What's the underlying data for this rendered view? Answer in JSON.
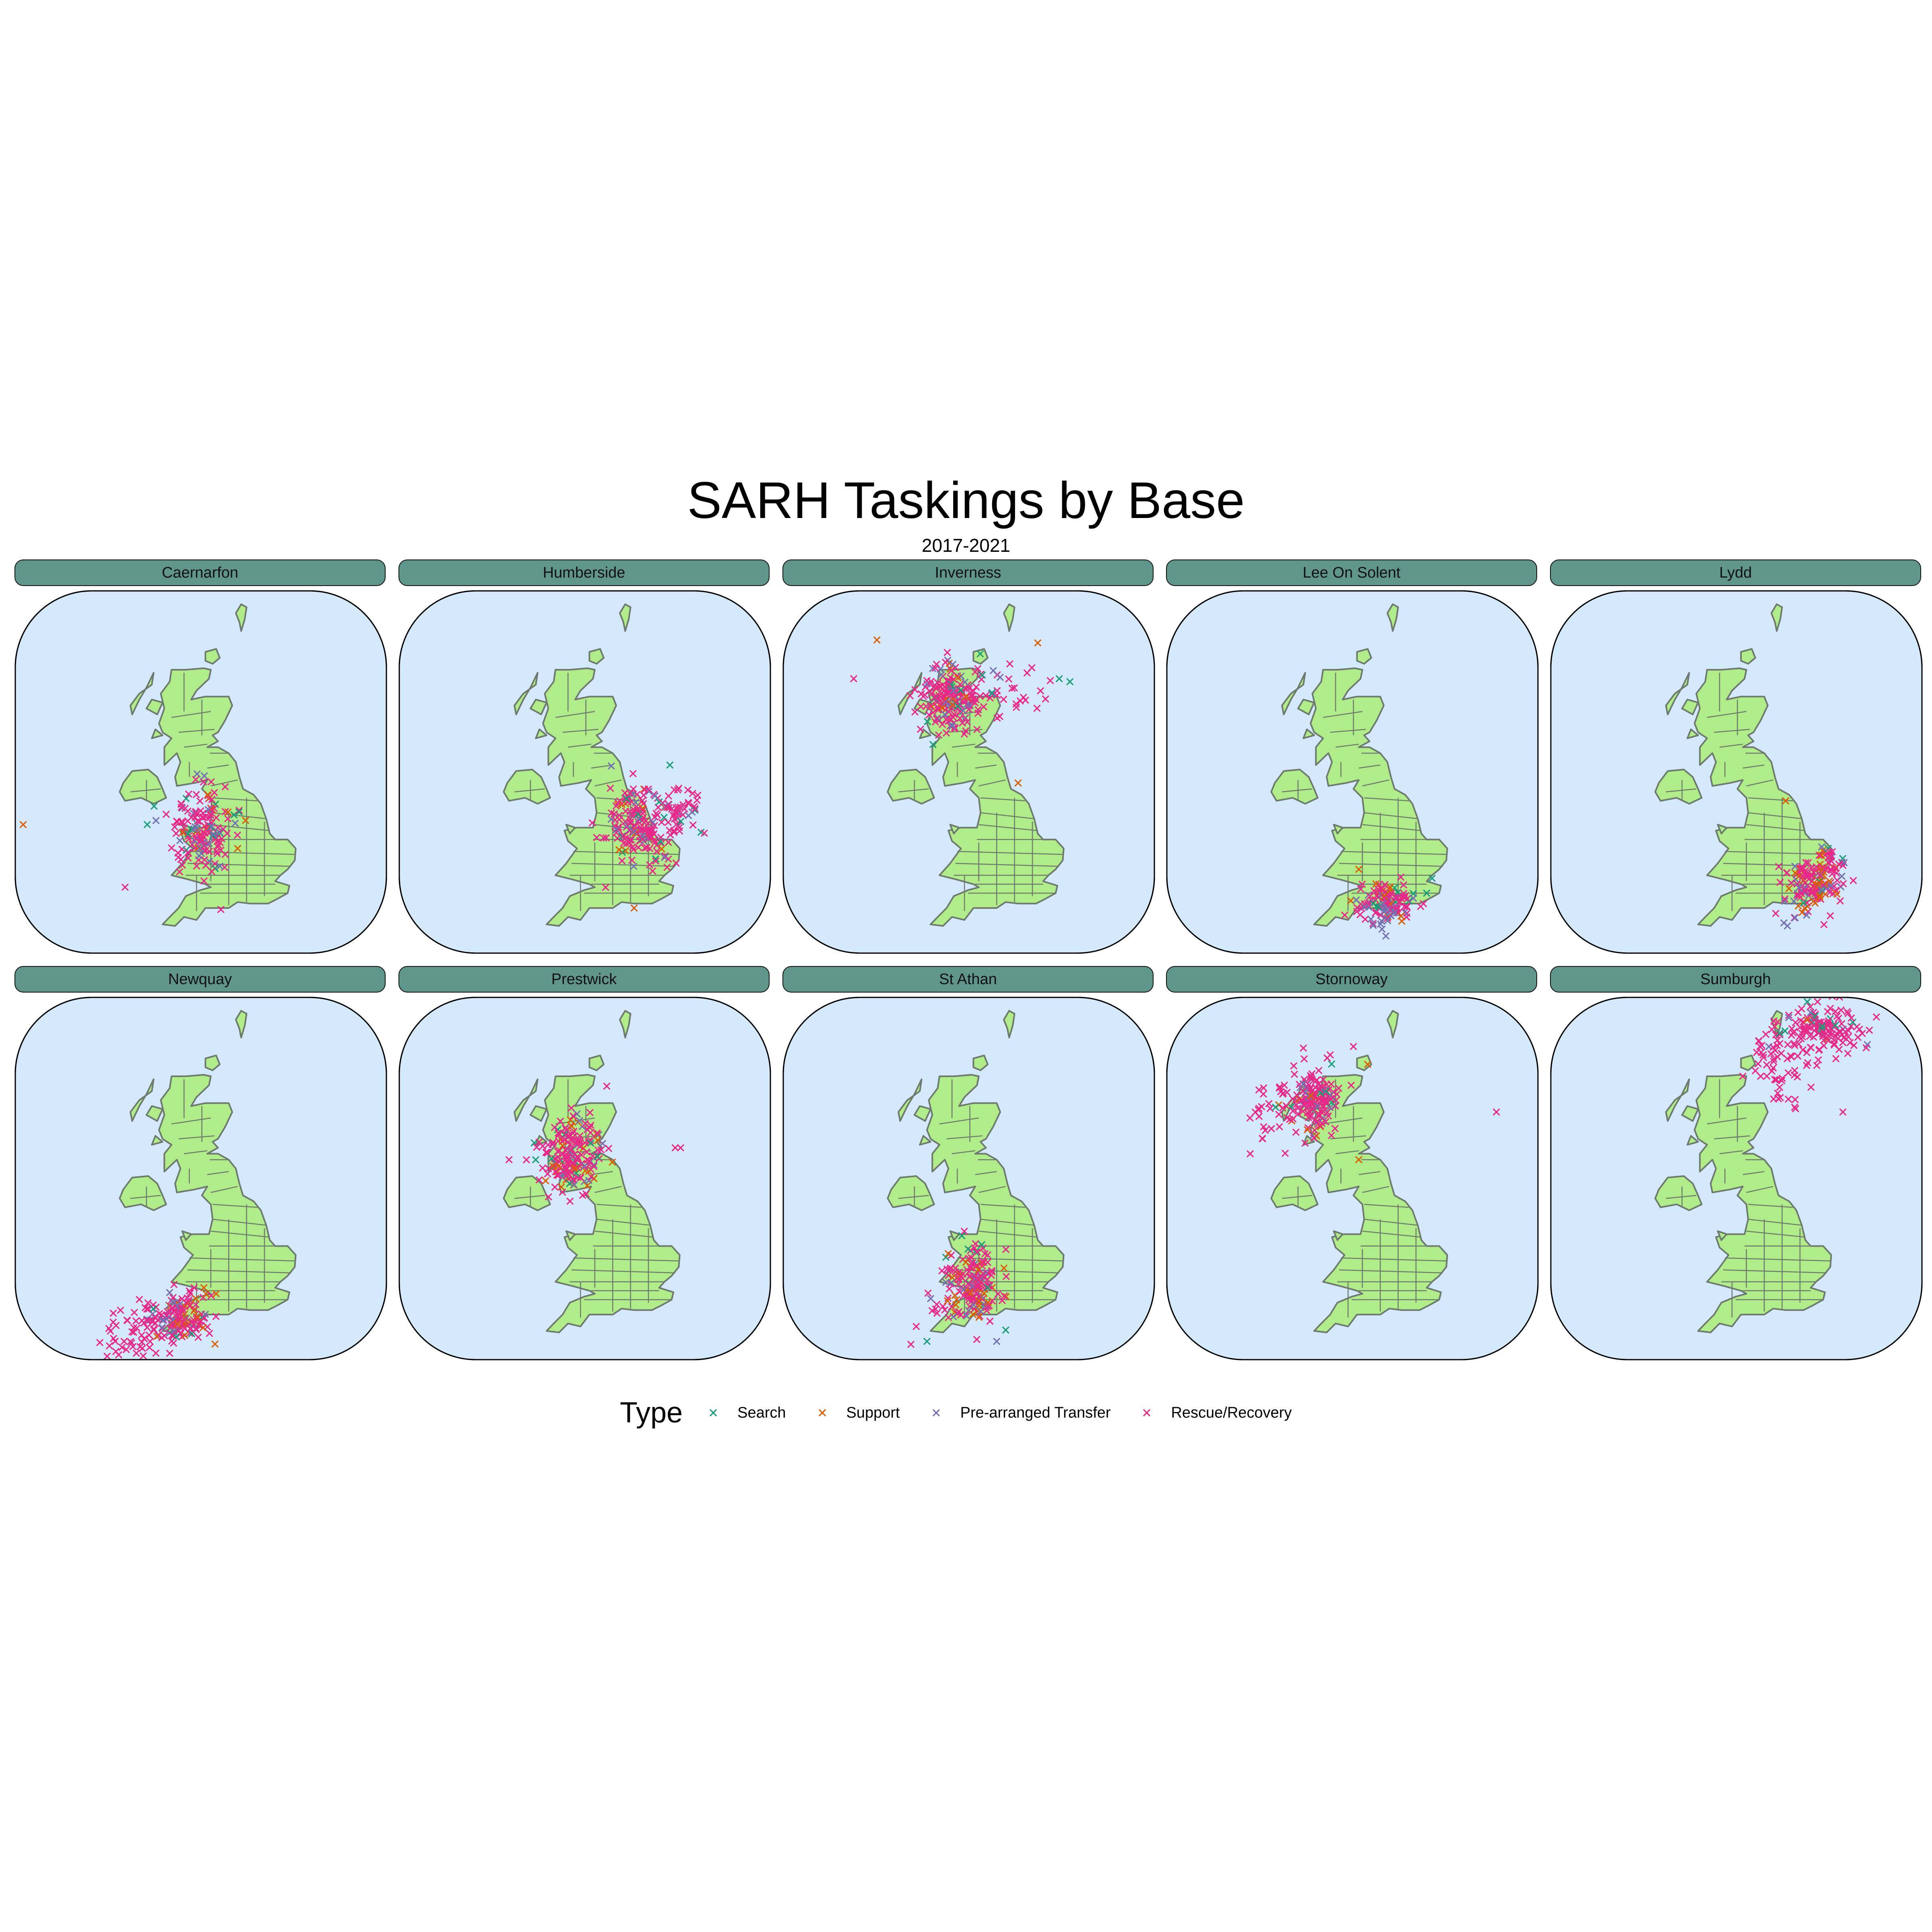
{
  "title": "SARH Taskings by Base",
  "subtitle": "2017-2021",
  "colors": {
    "sea": "#d4e9fc",
    "land": "#b0ec8a",
    "border": "#6d7a6d",
    "strip": "#5f958a"
  },
  "types": [
    {
      "key": "search",
      "label": "Search",
      "color": "#1b9e77"
    },
    {
      "key": "support",
      "label": "Support",
      "color": "#d95f02"
    },
    {
      "key": "transfer",
      "label": "Pre-arranged Transfer",
      "color": "#7570b3"
    },
    {
      "key": "rescue",
      "label": "Rescue/Recovery",
      "color": "#e7298a"
    }
  ],
  "legend": {
    "title": "Type"
  },
  "facets": [
    {
      "name": "Caernarfon",
      "clusters": [
        {
          "lon": -3.6,
          "lat": 53.0,
          "slon": 0.9,
          "slat": 0.7,
          "n": 140,
          "mix": [
            0.06,
            0.07,
            0.12,
            0.75
          ]
        },
        {
          "lon": -3.2,
          "lat": 54.2,
          "slon": 0.5,
          "slat": 0.5,
          "n": 20,
          "mix": [
            0.1,
            0.1,
            0.2,
            0.6
          ]
        }
      ],
      "outliers": [
        {
          "lon": -13.5,
          "lat": 53.4,
          "type": 1
        },
        {
          "lon": -7.8,
          "lat": 51.3,
          "type": 3
        },
        {
          "lon": -1.5,
          "lat": 52.6,
          "type": 1
        }
      ]
    },
    {
      "name": "Humberside",
      "clusters": [
        {
          "lon": -0.6,
          "lat": 53.4,
          "slon": 1.0,
          "slat": 0.7,
          "n": 170,
          "mix": [
            0.06,
            0.1,
            0.1,
            0.74
          ]
        },
        {
          "lon": 1.8,
          "lat": 53.8,
          "slon": 0.6,
          "slat": 0.5,
          "n": 40,
          "mix": [
            0.1,
            0.05,
            0.05,
            0.8
          ]
        }
      ],
      "outliers": [
        {
          "lon": -0.8,
          "lat": 50.6,
          "type": 1
        },
        {
          "lon": 1.2,
          "lat": 55.4,
          "type": 0
        }
      ]
    },
    {
      "name": "Inverness",
      "clusters": [
        {
          "lon": -4.6,
          "lat": 57.6,
          "slon": 0.9,
          "slat": 0.6,
          "n": 180,
          "mix": [
            0.05,
            0.08,
            0.12,
            0.75
          ]
        },
        {
          "lon": -1.4,
          "lat": 58.0,
          "slon": 1.2,
          "slat": 0.4,
          "n": 30,
          "mix": [
            0.05,
            0.05,
            0.05,
            0.85
          ]
        }
      ],
      "outliers": [
        {
          "lon": -8.7,
          "lat": 59.6,
          "type": 1
        },
        {
          "lon": -10.0,
          "lat": 58.3,
          "type": 3
        },
        {
          "lon": 0.3,
          "lat": 59.5,
          "type": 1
        },
        {
          "lon": 1.5,
          "lat": 58.3,
          "type": 0
        },
        {
          "lon": 2.1,
          "lat": 58.2,
          "type": 0
        },
        {
          "lon": -0.8,
          "lat": 54.8,
          "type": 1
        }
      ]
    },
    {
      "name": "Lee On Solent",
      "clusters": [
        {
          "lon": -1.6,
          "lat": 50.8,
          "slon": 0.9,
          "slat": 0.3,
          "n": 120,
          "mix": [
            0.08,
            0.08,
            0.2,
            0.64
          ]
        },
        {
          "lon": -1.9,
          "lat": 50.1,
          "slon": 0.3,
          "slat": 0.2,
          "n": 10,
          "mix": [
            0.0,
            0.0,
            1.0,
            0.0
          ]
        }
      ],
      "outliers": [
        {
          "lon": -3.2,
          "lat": 51.9,
          "type": 1
        },
        {
          "lon": 0.9,
          "lat": 51.6,
          "type": 0
        },
        {
          "lon": 0.6,
          "lat": 51.1,
          "type": 0
        }
      ]
    },
    {
      "name": "Lydd",
      "clusters": [
        {
          "lon": 0.8,
          "lat": 51.4,
          "slon": 0.9,
          "slat": 0.5,
          "n": 140,
          "mix": [
            0.06,
            0.2,
            0.12,
            0.62
          ]
        },
        {
          "lon": 1.6,
          "lat": 52.2,
          "slon": 0.5,
          "slat": 0.3,
          "n": 25,
          "mix": [
            0.05,
            0.05,
            0.1,
            0.8
          ]
        }
      ],
      "outliers": [
        {
          "lon": -0.9,
          "lat": 50.1,
          "type": 2
        },
        {
          "lon": -0.7,
          "lat": 50.0,
          "type": 2
        },
        {
          "lon": -0.8,
          "lat": 54.2,
          "type": 1
        }
      ]
    },
    {
      "name": "Newquay",
      "clusters": [
        {
          "lon": -4.8,
          "lat": 50.5,
          "slon": 0.9,
          "slat": 0.4,
          "n": 150,
          "mix": [
            0.06,
            0.12,
            0.12,
            0.7
          ]
        },
        {
          "lon": -7.0,
          "lat": 50.0,
          "slon": 1.2,
          "slat": 0.4,
          "n": 45,
          "mix": [
            0.05,
            0.0,
            0.05,
            0.9
          ]
        }
      ],
      "outliers": [
        {
          "lon": -8.8,
          "lat": 49.2,
          "type": 3
        },
        {
          "lon": -5.3,
          "lat": 49.3,
          "type": 3
        },
        {
          "lon": -2.7,
          "lat": 51.3,
          "type": 1
        }
      ]
    },
    {
      "name": "Prestwick",
      "clusters": [
        {
          "lon": -4.3,
          "lat": 56.0,
          "slon": 0.9,
          "slat": 0.7,
          "n": 190,
          "mix": [
            0.07,
            0.1,
            0.13,
            0.7
          ]
        }
      ],
      "outliers": [
        {
          "lon": -7.8,
          "lat": 55.8,
          "type": 3
        },
        {
          "lon": 1.5,
          "lat": 56.2,
          "type": 3
        },
        {
          "lon": 1.8,
          "lat": 56.2,
          "type": 3
        }
      ]
    },
    {
      "name": "St Athan",
      "clusters": [
        {
          "lon": -3.4,
          "lat": 51.6,
          "slon": 0.8,
          "slat": 0.6,
          "n": 170,
          "mix": [
            0.07,
            0.15,
            0.1,
            0.68
          ]
        }
      ],
      "outliers": [
        {
          "lon": -6.5,
          "lat": 50.2,
          "type": 3
        },
        {
          "lon": -6.8,
          "lat": 49.6,
          "type": 3
        },
        {
          "lon": -5.9,
          "lat": 49.7,
          "type": 0
        },
        {
          "lon": -3.6,
          "lat": 52.8,
          "type": 0
        },
        {
          "lon": -2.0,
          "lat": 49.7,
          "type": 2
        },
        {
          "lon": -4.7,
          "lat": 50.5,
          "type": 3
        }
      ]
    },
    {
      "name": "Stornoway",
      "clusters": [
        {
          "lon": -5.6,
          "lat": 57.8,
          "slon": 0.7,
          "slat": 0.5,
          "n": 150,
          "mix": [
            0.05,
            0.05,
            0.1,
            0.8
          ]
        },
        {
          "lon": -7.6,
          "lat": 57.4,
          "slon": 1.0,
          "slat": 0.6,
          "n": 40,
          "mix": [
            0.05,
            0.02,
            0.03,
            0.9
          ]
        }
      ],
      "outliers": [
        {
          "lon": 4.5,
          "lat": 57.4,
          "type": 3
        },
        {
          "lon": -2.7,
          "lat": 59.0,
          "type": 1
        },
        {
          "lon": -3.2,
          "lat": 55.8,
          "type": 1
        },
        {
          "lon": -3.5,
          "lat": 59.6,
          "type": 3
        }
      ]
    },
    {
      "name": "Sumburgh",
      "clusters": [
        {
          "lon": 1.5,
          "lat": 60.2,
          "slon": 1.0,
          "slat": 0.5,
          "n": 140,
          "mix": [
            0.07,
            0.02,
            0.06,
            0.85
          ]
        },
        {
          "lon": -1.6,
          "lat": 59.4,
          "slon": 0.5,
          "slat": 0.4,
          "n": 35,
          "mix": [
            0.1,
            0.0,
            0.1,
            0.8
          ]
        },
        {
          "lon": -0.8,
          "lat": 58.2,
          "slon": 0.5,
          "slat": 0.5,
          "n": 20,
          "mix": [
            0.0,
            0.0,
            0.0,
            1.0
          ]
        }
      ],
      "outliers": [
        {
          "lon": -2.2,
          "lat": 58.6,
          "type": 3
        },
        {
          "lon": 2.4,
          "lat": 57.4,
          "type": 3
        },
        {
          "lon": -3.2,
          "lat": 58.6,
          "type": 3
        }
      ]
    }
  ]
}
